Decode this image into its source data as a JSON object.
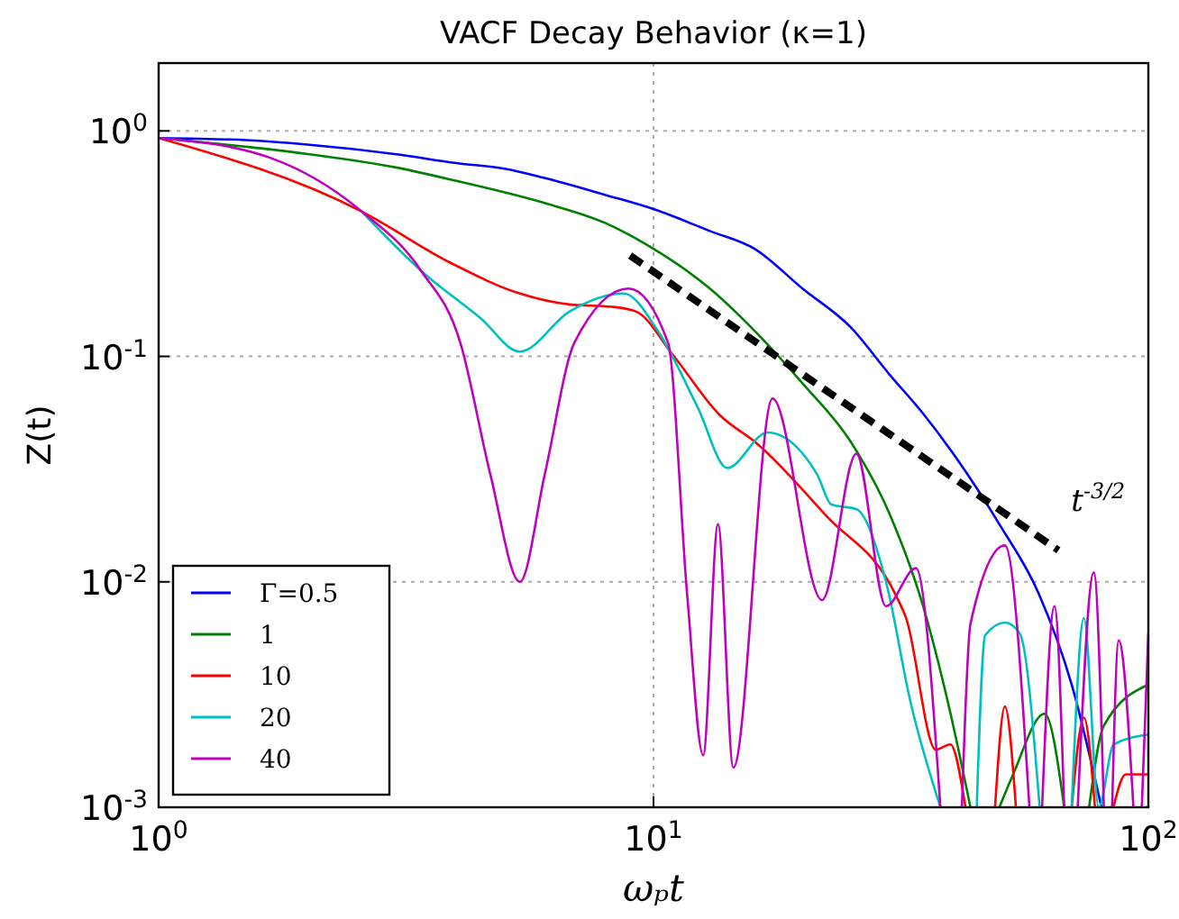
{
  "chart_data": {
    "type": "line",
    "title": "VACF Decay Behavior (κ=1)",
    "xlabel": "ωₚt",
    "ylabel": "Z(t)",
    "log": "xy",
    "grid": true,
    "legend": "bottom left",
    "line_style": "solid",
    "xlim": [
      1,
      100
    ],
    "ylim": [
      0.001,
      2
    ],
    "xticks": [
      {
        "value": 1,
        "label": "10$^{0}$"
      },
      {
        "value": 10,
        "label": "10$^{1}$"
      },
      {
        "value": 100,
        "label": "10$^{2}$"
      }
    ],
    "yticks": [
      {
        "value": 0.001,
        "label": "10$^{-3}$"
      },
      {
        "value": 0.01,
        "label": "10$^{-2}$"
      },
      {
        "value": 0.1,
        "label": "10$^{-1}$"
      },
      {
        "value": 1,
        "label": "10$^{0}$"
      }
    ],
    "series": [
      {
        "name": "Γ=0.5",
        "color": "#0000ff",
        "x": [
          1,
          1.5,
          2,
          3,
          4,
          5,
          6,
          8,
          10,
          13,
          16,
          20,
          25,
          30,
          35,
          40,
          50,
          60,
          70,
          80.4
        ],
        "values": [
          0.93,
          0.91,
          0.87,
          0.79,
          0.72,
          0.68,
          0.62,
          0.52,
          0.45,
          0.36,
          0.3,
          0.2,
          0.135,
          0.083,
          0.056,
          0.038,
          0.018,
          0.0089,
          0.0035,
          0.001
        ]
      },
      {
        "name": "1",
        "color": "#008000",
        "x": [
          1,
          2,
          3,
          4,
          6,
          8,
          10,
          13,
          16,
          20,
          25,
          30,
          35,
          40,
          43.7,
          46,
          50,
          53.3,
          61.7,
          67.6,
          70,
          75.9,
          81.3,
          100
        ],
        "values": [
          0.93,
          0.79,
          0.69,
          0.6,
          0.48,
          0.39,
          0.3,
          0.2,
          0.13,
          0.076,
          0.042,
          0.02,
          0.0079,
          0.0025,
          0.001,
          null,
          0.001,
          0.0014,
          0.0026,
          0.001,
          null,
          0.001,
          0.0023,
          0.0035
        ]
      },
      {
        "name": "10",
        "color": "#ff0000",
        "x": [
          1,
          2.57,
          3.89,
          5.37,
          6.76,
          8.24,
          9.23,
          11,
          13.6,
          16.2,
          22.4,
          30.9,
          32.4,
          37.2,
          39.8,
          42.7,
          46,
          49,
          51.3,
          54,
          60,
          70,
          74.1,
          78,
          82,
          85,
          90,
          100
        ],
        "values": [
          0.93,
          0.44,
          0.26,
          0.19,
          0.17,
          0.166,
          0.158,
          0.1,
          0.055,
          0.041,
          0.0195,
          0.0087,
          0.0069,
          0.0018,
          0.0019,
          0.001,
          null,
          0.001,
          0.0028,
          0.001,
          null,
          0.001,
          0.0025,
          0.001,
          null,
          0.001,
          0.0014,
          0.0014
        ]
      },
      {
        "name": "20",
        "color": "#00bfbf",
        "x": [
          2.57,
          3.39,
          4.47,
          5.37,
          6.76,
          8.71,
          10.2,
          12.3,
          14.1,
          17,
          21.4,
          22.9,
          25.7,
          29.5,
          33.1,
          38,
          43,
          45,
          46.8,
          51.3,
          55,
          60.3,
          66,
          70,
          74.1,
          79.4,
          85.1,
          100
        ],
        "values": [
          0.44,
          0.24,
          0.148,
          0.105,
          0.158,
          0.19,
          0.13,
          0.059,
          0.032,
          0.046,
          0.03,
          0.022,
          0.021,
          0.01,
          0.0029,
          0.001,
          null,
          0.001,
          0.0058,
          0.0066,
          0.0059,
          0.001,
          null,
          0.001,
          0.0069,
          0.001,
          0.0019,
          0.0021
        ]
      },
      {
        "name": "40",
        "color": "#bf00bf",
        "x": [
          1,
          1.68,
          2.57,
          3.39,
          4.07,
          4.68,
          5.37,
          6.03,
          6.92,
          8.91,
          10.7,
          11.7,
          12.6,
          13.5,
          14.5,
          17.4,
          21.9,
          25.7,
          29.5,
          33.9,
          38,
          40,
          42,
          43.7,
          51.3,
          57.5,
          59,
          61,
          64.6,
          67.6,
          69,
          72,
          77.6,
          81.3,
          83,
          84.5,
          87.1,
          93.3,
          95,
          97,
          100
        ],
        "values": [
          0.93,
          0.76,
          0.44,
          0.24,
          0.115,
          0.03,
          0.01,
          0.03,
          0.115,
          0.2,
          0.115,
          0.0087,
          0.0017,
          0.018,
          0.0015,
          0.065,
          0.0083,
          0.037,
          0.0078,
          0.0115,
          0.001,
          null,
          0.001,
          0.0065,
          0.0145,
          0.001,
          null,
          0.001,
          0.0078,
          0.001,
          null,
          0.001,
          0.011,
          0.001,
          null,
          0.001,
          0.0055,
          0.001,
          null,
          0.001,
          0.0059
        ]
      },
      {
        "type": "line",
        "color": "#000000",
        "line_style": "dashed",
        "x": [
          8.97,
          65.8
        ],
        "values": [
          0.28,
          0.0138
        ]
      }
    ],
    "annotations": [
      {
        "text": "t$^{-3/2}$",
        "x": 65.8,
        "y": 0.0138
      }
    ]
  }
}
